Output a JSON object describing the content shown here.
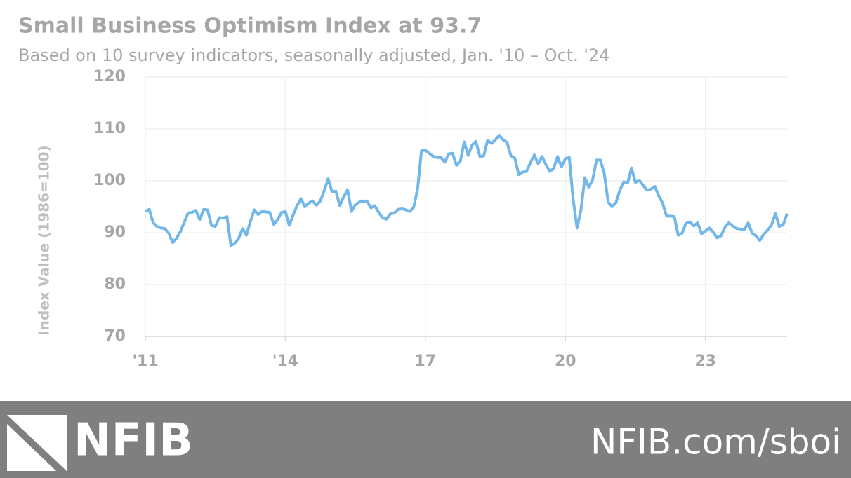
{
  "chart_data": {
    "type": "line",
    "title": "Small Business Optimism Index at 93.7",
    "subtitle": "Based on 10 survey indicators, seasonally adjusted,  Jan. '10 – Oct. '24",
    "y_label": "Index Value (1986=100)",
    "color": "#72b7ea",
    "grid": true,
    "ylim": [
      70,
      120
    ],
    "yticks": [
      70,
      80,
      90,
      100,
      110,
      120
    ],
    "categories": [
      "'11",
      null,
      null,
      null,
      null,
      null,
      null,
      null,
      null,
      null,
      null,
      null,
      null,
      null,
      null,
      null,
      null,
      null,
      null,
      null,
      null,
      null,
      null,
      null,
      null,
      null,
      null,
      null,
      null,
      null,
      null,
      null,
      null,
      null,
      null,
      null,
      "'14",
      null,
      null,
      null,
      null,
      null,
      null,
      null,
      null,
      null,
      null,
      null,
      null,
      null,
      null,
      null,
      null,
      null,
      null,
      null,
      null,
      null,
      null,
      null,
      null,
      null,
      null,
      null,
      null,
      null,
      null,
      null,
      null,
      null,
      null,
      null,
      "17",
      null,
      null,
      null,
      null,
      null,
      null,
      null,
      null,
      null,
      null,
      null,
      null,
      null,
      null,
      null,
      null,
      null,
      null,
      null,
      null,
      null,
      null,
      null,
      null,
      null,
      null,
      null,
      null,
      null,
      null,
      null,
      null,
      null,
      null,
      null,
      "20",
      null,
      null,
      null,
      null,
      null,
      null,
      null,
      null,
      null,
      null,
      null,
      null,
      null,
      null,
      null,
      null,
      null,
      null,
      null,
      null,
      null,
      null,
      null,
      null,
      null,
      null,
      null,
      null,
      null,
      null,
      null,
      null,
      null,
      null,
      null,
      "23",
      null,
      null,
      null,
      null,
      null,
      null,
      null,
      null,
      null,
      null,
      null,
      null,
      null,
      null,
      null,
      null,
      null,
      null,
      null,
      null,
      null
    ],
    "values": [
      94.1,
      94.5,
      91.9,
      91.2,
      90.9,
      90.8,
      89.9,
      88.1,
      88.9,
      90.2,
      92.0,
      93.8,
      93.9,
      94.3,
      92.5,
      94.5,
      94.4,
      91.4,
      91.2,
      92.9,
      92.8,
      93.1,
      87.5,
      88.0,
      88.9,
      90.8,
      89.5,
      92.1,
      94.4,
      93.5,
      94.1,
      94.0,
      93.9,
      91.6,
      92.5,
      93.9,
      94.1,
      91.4,
      93.4,
      95.2,
      96.6,
      95.0,
      95.7,
      96.1,
      95.3,
      96.1,
      98.1,
      100.4,
      97.9,
      98.0,
      95.2,
      96.9,
      98.3,
      94.1,
      95.4,
      95.9,
      96.1,
      96.1,
      94.8,
      95.2,
      93.9,
      92.9,
      92.6,
      93.6,
      93.8,
      94.5,
      94.6,
      94.4,
      94.1,
      94.9,
      98.4,
      105.8,
      105.9,
      105.3,
      104.7,
      104.5,
      104.5,
      103.6,
      105.2,
      105.3,
      103.0,
      103.8,
      107.5,
      104.9,
      106.9,
      107.6,
      104.7,
      104.8,
      107.8,
      107.2,
      107.9,
      108.8,
      107.9,
      107.4,
      104.8,
      104.4,
      101.2,
      101.7,
      101.8,
      103.5,
      105.0,
      103.3,
      104.7,
      103.1,
      101.8,
      102.4,
      104.7,
      102.7,
      104.3,
      104.5,
      96.4,
      90.9,
      94.4,
      100.6,
      98.8,
      100.2,
      104.0,
      104.0,
      101.4,
      95.9,
      95.0,
      95.8,
      98.2,
      99.8,
      99.6,
      102.5,
      99.7,
      100.1,
      99.1,
      98.2,
      98.4,
      98.9,
      97.1,
      95.7,
      93.2,
      93.2,
      93.1,
      89.5,
      89.9,
      91.8,
      92.1,
      91.3,
      91.9,
      89.8,
      90.3,
      90.9,
      90.1,
      89.0,
      89.4,
      91.0,
      91.9,
      91.3,
      90.8,
      90.7,
      90.6,
      91.9,
      89.9,
      89.4,
      88.5,
      89.7,
      90.5,
      91.5,
      93.7,
      91.2,
      91.5,
      93.7
    ]
  },
  "footer": {
    "logo": "NFIB",
    "url": "NFIB.com/sboi"
  }
}
